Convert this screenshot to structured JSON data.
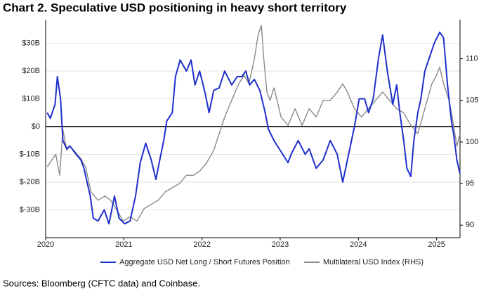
{
  "chart_data": {
    "type": "line",
    "title": "Chart 2. Speculative USD positioning in heavy short territory",
    "source": "Sources: Bloomberg (CFTC data) and Coinbase.",
    "xlim": [
      2020,
      2025.3
    ],
    "xticks": [
      2020,
      2021,
      2022,
      2023,
      2024,
      2025
    ],
    "ylim": [
      -40,
      38.5
    ],
    "yticks": [
      {
        "value": -30,
        "label": "$-30B"
      },
      {
        "value": -20,
        "label": "$-20B"
      },
      {
        "value": -10,
        "label": "$-10B"
      },
      {
        "value": 0,
        "label": "$0"
      },
      {
        "value": 10,
        "label": "$10B"
      },
      {
        "value": 20,
        "label": "$20B"
      },
      {
        "value": 30,
        "label": "$30B"
      }
    ],
    "y2lim": [
      88.5,
      114.7
    ],
    "y2ticks": [
      90,
      95,
      100,
      105,
      110
    ],
    "grid": true,
    "legend": "bottom",
    "series": [
      {
        "name": "Aggregate USD Net Long / Short Futures Position",
        "color": "#1f2fcc",
        "axis": "y",
        "x": [
          2020.02,
          2020.06,
          2020.12,
          2020.15,
          2020.19,
          2020.22,
          2020.27,
          2020.31,
          2020.39,
          2020.45,
          2020.49,
          2020.57,
          2020.61,
          2020.67,
          2020.75,
          2020.81,
          2020.88,
          2020.94,
          2021.01,
          2021.08,
          2021.15,
          2021.21,
          2021.28,
          2021.35,
          2021.41,
          2021.46,
          2021.51,
          2021.55,
          2021.62,
          2021.66,
          2021.72,
          2021.8,
          2021.86,
          2021.91,
          2021.97,
          2022.04,
          2022.09,
          2022.15,
          2022.22,
          2022.29,
          2022.38,
          2022.45,
          2022.51,
          2022.56,
          2022.61,
          2022.67,
          2022.74,
          2022.8,
          2022.85,
          2022.92,
          2023.01,
          2023.1,
          2023.14,
          2023.23,
          2023.32,
          2023.37,
          2023.46,
          2023.55,
          2023.64,
          2023.73,
          2023.8,
          2023.86,
          2023.95,
          2024.01,
          2024.08,
          2024.13,
          2024.19,
          2024.26,
          2024.31,
          2024.37,
          2024.44,
          2024.49,
          2024.53,
          2024.58,
          2024.62,
          2024.67,
          2024.71,
          2024.76,
          2024.8,
          2024.85,
          2024.91,
          2024.97,
          2025.04,
          2025.09,
          2025.14,
          2025.19,
          2025.22,
          2025.26,
          2025.3
        ],
        "values": [
          5,
          3,
          8,
          18,
          10,
          -5,
          -8,
          -7,
          -10,
          -12,
          -15,
          -25,
          -33,
          -34,
          -30,
          -35,
          -25,
          -33,
          -35,
          -34,
          -25,
          -13,
          -6,
          -12,
          -19,
          -12,
          -5,
          2,
          5,
          18,
          24,
          20,
          24,
          15,
          20,
          12,
          5,
          13,
          14,
          20,
          15,
          18,
          18,
          20,
          15,
          17,
          13,
          6,
          -1,
          -5,
          -9,
          -13,
          -10,
          -5,
          -10,
          -8,
          -15,
          -12,
          -5,
          -10,
          -20,
          -12,
          0,
          10,
          10,
          5,
          10,
          25,
          33,
          20,
          8,
          15,
          5,
          -5,
          -15,
          -18,
          -5,
          5,
          10,
          20,
          25,
          30,
          34,
          32,
          15,
          2,
          -3,
          -12,
          -17
        ]
      },
      {
        "name": "Multilateral USD Index (RHS)",
        "color": "#8a8a8a",
        "axis": "y2",
        "x": [
          2020.02,
          2020.09,
          2020.13,
          2020.18,
          2020.22,
          2020.27,
          2020.31,
          2020.36,
          2020.45,
          2020.51,
          2020.58,
          2020.67,
          2020.76,
          2020.83,
          2020.9,
          2020.99,
          2021.08,
          2021.17,
          2021.26,
          2021.35,
          2021.44,
          2021.53,
          2021.62,
          2021.71,
          2021.8,
          2021.89,
          2021.97,
          2022.06,
          2022.15,
          2022.22,
          2022.29,
          2022.38,
          2022.47,
          2022.54,
          2022.6,
          2022.67,
          2022.72,
          2022.76,
          2022.79,
          2022.83,
          2022.87,
          2022.92,
          2022.96,
          2023.01,
          2023.1,
          2023.19,
          2023.28,
          2023.37,
          2023.46,
          2023.55,
          2023.64,
          2023.73,
          2023.8,
          2023.86,
          2023.95,
          2024.04,
          2024.13,
          2024.22,
          2024.31,
          2024.4,
          2024.49,
          2024.58,
          2024.67,
          2024.76,
          2024.85,
          2024.94,
          2025.0,
          2025.04,
          2025.09,
          2025.16,
          2025.2,
          2025.26,
          2025.3
        ],
        "values": [
          97,
          98,
          98.5,
          96,
          101.5,
          99,
          99.5,
          99,
          98,
          97,
          94,
          93,
          93.5,
          93,
          92,
          90.5,
          91,
          90.5,
          92,
          92.5,
          93,
          94,
          94.5,
          95,
          96,
          96,
          96.5,
          97.5,
          99,
          101,
          103,
          105,
          107,
          108,
          107,
          110,
          113,
          114,
          110,
          106,
          105,
          106.5,
          105,
          103,
          102,
          104,
          102,
          104,
          103,
          105,
          105,
          106,
          107,
          106,
          104,
          103,
          104,
          105,
          106,
          105,
          104,
          103.5,
          102,
          101,
          104,
          107,
          108,
          109,
          107,
          105,
          103,
          99.5,
          101
        ]
      }
    ]
  }
}
